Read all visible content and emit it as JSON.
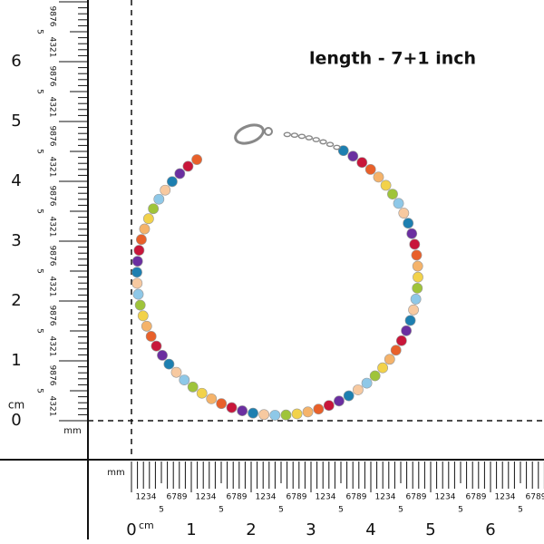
{
  "title": "length - 7+1 inch",
  "vertical_ruler": {
    "unit": "cm",
    "small_unit": "mm",
    "labels": [
      "0",
      "1",
      "2",
      "3",
      "4",
      "5",
      "6"
    ],
    "segments": [
      {
        "low": "4321",
        "mid": "5",
        "high": "9876"
      },
      {
        "low": "4321",
        "mid": "5",
        "high": "9876"
      },
      {
        "low": "4321",
        "mid": "5",
        "high": "9876"
      },
      {
        "low": "4321",
        "mid": "5",
        "high": "9876"
      },
      {
        "low": "4321",
        "mid": "5",
        "high": "9876"
      },
      {
        "low": "4321",
        "mid": "5",
        "high": "9876"
      },
      {
        "low": "4321",
        "mid": "5",
        "high": "9876"
      }
    ]
  },
  "horizontal_ruler": {
    "unit": "cm",
    "small_unit": "mm",
    "labels": [
      "0",
      "1",
      "2",
      "3",
      "4",
      "5",
      "6"
    ],
    "segments": [
      {
        "low": "1234",
        "mid": "5",
        "high": "6789"
      },
      {
        "low": "1234",
        "mid": "5",
        "high": "6789"
      },
      {
        "low": "1234",
        "mid": "5",
        "high": "6789"
      },
      {
        "low": "1234",
        "mid": "5",
        "high": "6789"
      },
      {
        "low": "1234",
        "mid": "5",
        "high": "6789"
      },
      {
        "low": "1234",
        "mid": "5",
        "high": "6789"
      },
      {
        "low": "1234",
        "mid": "5",
        "high": "6789"
      }
    ]
  }
}
